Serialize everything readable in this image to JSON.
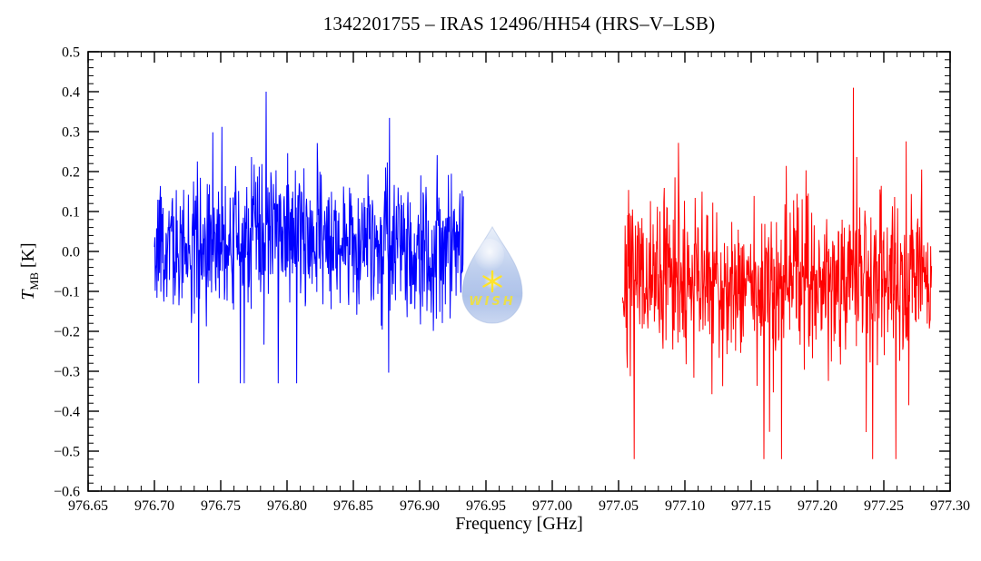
{
  "chart_data": {
    "type": "line",
    "title": "1342201755 – IRAS 12496/HH54 (HRS–V–LSB)",
    "xlabel": "Frequency [GHz]",
    "ylabel_parts": {
      "symbol": "T",
      "subscript": "MB",
      "unit": "[K]"
    },
    "xlim": [
      976.65,
      977.3
    ],
    "ylim": [
      -0.6,
      0.5
    ],
    "x_tick_labels": [
      "976.65",
      "976.70",
      "976.75",
      "976.80",
      "976.85",
      "976.90",
      "976.95",
      "977.00",
      "977.05",
      "977.10",
      "977.15",
      "977.20",
      "977.25",
      "977.30"
    ],
    "y_tick_labels": [
      "0.5",
      "0.4",
      "0.3",
      "0.2",
      "0.1",
      "0.0",
      "−0.1",
      "−0.2",
      "−0.3",
      "−0.4",
      "−0.5",
      "−0.6"
    ],
    "x_major_step": 0.05,
    "x_minor_step": 0.01,
    "y_major_step": 0.1,
    "y_minor_step": 0.02,
    "grid": false,
    "legend": "none",
    "background": "#ffffff",
    "frame_color": "#000000",
    "series": [
      {
        "name": "blue-segment",
        "color": "#0000ff",
        "x_start": 976.7,
        "x_end": 976.933,
        "n_points": 720,
        "baseline": 0.005,
        "sigma": 0.082,
        "spike_prob": 0.07,
        "spike_scale": 2.4,
        "clamp": [
          -0.33,
          0.4
        ],
        "bump": {
          "center": 976.805,
          "width": 0.045,
          "height": 0.045
        },
        "seed": 20
      },
      {
        "name": "red-segment",
        "color": "#ff0000",
        "x_start": 977.053,
        "x_end": 977.286,
        "n_points": 720,
        "baseline": -0.06,
        "sigma": 0.097,
        "spike_prob": 0.08,
        "spike_scale": 2.5,
        "clamp": [
          -0.52,
          0.41
        ],
        "bump": {
          "center": 977.1,
          "width": 0.05,
          "height": -0.02
        },
        "seed": 7
      }
    ]
  },
  "watermark": {
    "label": "WISH",
    "drop_color": "#b5c8ec",
    "star_color": "#ffe21f",
    "text_color": "#e9dd43"
  }
}
